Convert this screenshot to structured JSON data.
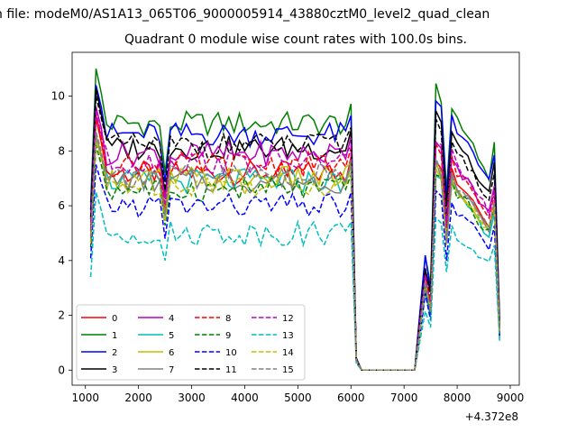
{
  "chart_data": {
    "type": "line",
    "suptitle": "n file: modeM0/AS1A13_065T06_9000005914_43880cztM0_level2_quad_clean",
    "title": "Quadrant 0 module wise count rates with 100.0s bins.",
    "xlabel": "",
    "ylabel": "",
    "offset_label": "+4.372e8",
    "xlim": [
      750,
      9170
    ],
    "ylim": [
      -0.55,
      11.6
    ],
    "xticks": [
      1000,
      2000,
      3000,
      4000,
      5000,
      6000,
      7000,
      8000,
      9000
    ],
    "yticks": [
      0,
      2,
      4,
      6,
      8,
      10
    ],
    "legend_location": "lower-left",
    "segments": [
      {
        "x_start": 1100,
        "x_end": 6000,
        "step": 100
      },
      {
        "x_start": 6100,
        "x_end": 7200,
        "step": 100,
        "value": 0
      },
      {
        "x_start": 7300,
        "x_end": 8800,
        "step": 100
      }
    ],
    "series": [
      {
        "name": "0",
        "color": "#ff0000",
        "dash": "solid",
        "level": 7.2,
        "peak": 9.2,
        "second": 7.8
      },
      {
        "name": "1",
        "color": "#008000",
        "dash": "solid",
        "level": 9.0,
        "peak": 11.0,
        "second": 10.3
      },
      {
        "name": "2",
        "color": "#0000ff",
        "dash": "solid",
        "level": 8.6,
        "peak": 10.4,
        "second": 9.9
      },
      {
        "name": "3",
        "color": "#000000",
        "dash": "solid",
        "level": 8.1,
        "peak": 10.3,
        "second": 9.3
      },
      {
        "name": "4",
        "color": "#bf00bf",
        "dash": "solid",
        "level": 7.9,
        "peak": 9.6,
        "second": 8.3
      },
      {
        "name": "5",
        "color": "#00bfbf",
        "dash": "solid",
        "level": 6.9,
        "peak": 8.5,
        "second": 7.2
      },
      {
        "name": "6",
        "color": "#bfbf00",
        "dash": "solid",
        "level": 7.0,
        "peak": 8.6,
        "second": 7.4
      },
      {
        "name": "7",
        "color": "#808080",
        "dash": "solid",
        "level": 6.9,
        "peak": 8.5,
        "second": 7.5
      },
      {
        "name": "8",
        "color": "#ff0000",
        "dash": "dashed",
        "level": 7.5,
        "peak": 9.3,
        "second": 8.2
      },
      {
        "name": "9",
        "color": "#008000",
        "dash": "dashed",
        "level": 6.6,
        "peak": 8.2,
        "second": 7.3
      },
      {
        "name": "10",
        "color": "#0000ff",
        "dash": "dashed",
        "level": 6.0,
        "peak": 7.5,
        "second": 6.5
      },
      {
        "name": "11",
        "color": "#000000",
        "dash": "dashed",
        "level": 8.2,
        "peak": 10.0,
        "second": 9.0
      },
      {
        "name": "12",
        "color": "#bf00bf",
        "dash": "dashed",
        "level": 7.6,
        "peak": 9.4,
        "second": 8.4
      },
      {
        "name": "13",
        "color": "#00bfbf",
        "dash": "dashed",
        "level": 5.0,
        "peak": 6.5,
        "second": 5.5
      },
      {
        "name": "14",
        "color": "#bfbf00",
        "dash": "dashed",
        "level": 6.8,
        "peak": 8.4,
        "second": 7.4
      },
      {
        "name": "15",
        "color": "#808080",
        "dash": "dashed",
        "level": 7.1,
        "peak": 8.7,
        "second": 7.6
      }
    ]
  }
}
